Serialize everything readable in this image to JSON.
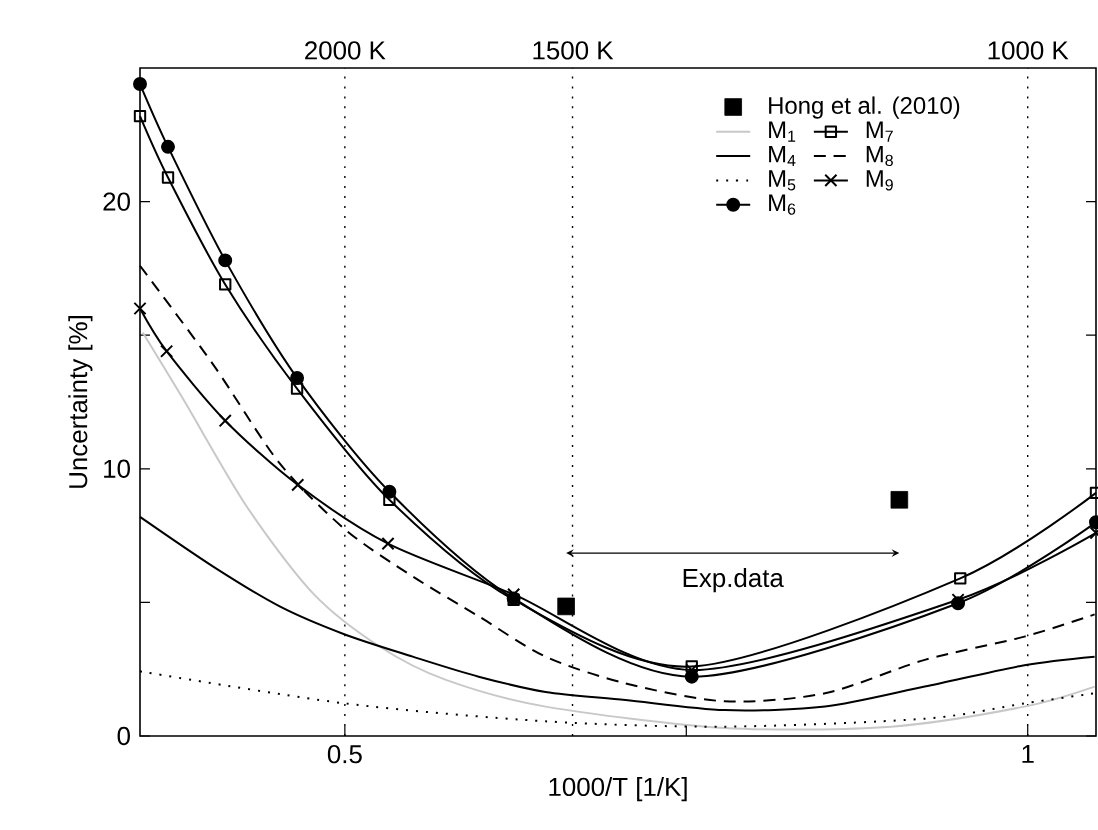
{
  "chart_data": {
    "type": "line",
    "xlabel": "1000/T [1/K]",
    "ylabel": "Uncertainty [%]",
    "xlim": [
      0.35,
      1.05
    ],
    "xticks": [
      0.5,
      {
        "value": 0.75,
        "label": null
      },
      1
    ],
    "ylim": [
      0,
      25
    ],
    "yticks": [
      0,
      {
        "value": 5,
        "label": null
      },
      10,
      {
        "value": 15,
        "label": null
      },
      20
    ],
    "ref_lines": [
      {
        "axis": "x",
        "value": 0.5,
        "line_style": "dotted",
        "label": "2000 K"
      },
      {
        "axis": "x",
        "value": 0.6667,
        "line_style": "dotted",
        "label": "1500 K"
      },
      {
        "axis": "x",
        "value": 1,
        "line_style": "dotted",
        "label": "1000 K"
      }
    ],
    "legend": "top right",
    "annotations": [
      "Exp.data"
    ],
    "series": [
      {
        "name": "Hong et al. (2010)",
        "type": "scatter",
        "marker": "square",
        "color": "#000000",
        "x": [
          0.662,
          0.906
        ],
        "values": [
          4.85,
          8.84
        ]
      },
      {
        "name": "M$_{1}$",
        "type": "line",
        "color": "#c8c8c8",
        "line_style": "solid",
        "marker": "none",
        "x": [
          0.352,
          0.3817,
          0.428,
          0.4767,
          0.5254,
          0.574,
          0.647,
          0.778,
          0.9,
          0.9976,
          1.049
        ],
        "values": [
          15.1,
          12.6,
          8.6,
          5.34,
          3.35,
          2.1,
          1.1,
          0.3,
          0.35,
          1.1,
          1.85
        ]
      },
      {
        "name": "M$_{4}$",
        "type": "line",
        "color": "#000000",
        "line_style": "solid",
        "marker": "none",
        "x": [
          0.35,
          0.4036,
          0.4523,
          0.5,
          0.5497,
          0.598,
          0.647,
          0.7054,
          0.778,
          0.8516,
          0.9246,
          0.9976,
          1.049
        ],
        "values": [
          8.2,
          6.34,
          4.85,
          3.8,
          2.97,
          2.22,
          1.65,
          1.35,
          0.97,
          1.1,
          1.85,
          2.65,
          2.97
        ]
      },
      {
        "name": "M$_{5}$",
        "type": "line",
        "color": "#000000",
        "line_style": "dotted",
        "marker": "none",
        "x": [
          0.35,
          0.5,
          0.647,
          0.778,
          0.925,
          0.9976,
          1.049
        ],
        "values": [
          2.42,
          1.22,
          0.55,
          0.35,
          0.65,
          1.22,
          1.6
        ]
      },
      {
        "name": "M$_{6}$",
        "type": "line",
        "color": "#000000",
        "line_style": "solid",
        "marker": "circle",
        "x": [
          0.35,
          0.3705,
          0.4124,
          0.465,
          0.5326,
          0.6236,
          0.754,
          0.949,
          1.05
        ],
        "values": [
          24.4,
          22.05,
          17.8,
          13.4,
          9.14,
          5.15,
          2.22,
          4.97,
          8.0
        ]
      },
      {
        "name": "M$_{7}$",
        "type": "line",
        "color": "#000000",
        "line_style": "solid",
        "marker": "square",
        "x": [
          0.35,
          0.3705,
          0.4124,
          0.465,
          0.5326,
          0.6236,
          0.754,
          0.9506,
          1.05
        ],
        "values": [
          23.2,
          20.9,
          16.9,
          13.0,
          8.84,
          5.1,
          2.6,
          5.9,
          9.1
        ]
      },
      {
        "name": "M$_{8}$",
        "type": "line",
        "color": "#000000",
        "line_style": "dashed",
        "marker": "none",
        "x": [
          0.35,
          0.4036,
          0.4523,
          0.5009,
          0.5497,
          0.5983,
          0.647,
          0.7054,
          0.778,
          0.8516,
          0.9246,
          0.9976,
          1.049
        ],
        "values": [
          17.6,
          13.9,
          10.2,
          7.7,
          5.97,
          4.47,
          2.97,
          1.97,
          1.3,
          1.6,
          2.85,
          3.72,
          4.55
        ]
      },
      {
        "name": "M$_{9}$",
        "type": "line",
        "color": "#000000",
        "line_style": "solid",
        "marker": "cross",
        "x": [
          0.35,
          0.3695,
          0.4124,
          0.4655,
          0.5316,
          0.6236,
          0.754,
          0.949,
          1.05
        ],
        "values": [
          16.0,
          14.4,
          11.8,
          9.4,
          7.2,
          5.3,
          2.47,
          5.1,
          7.6
        ]
      }
    ]
  }
}
